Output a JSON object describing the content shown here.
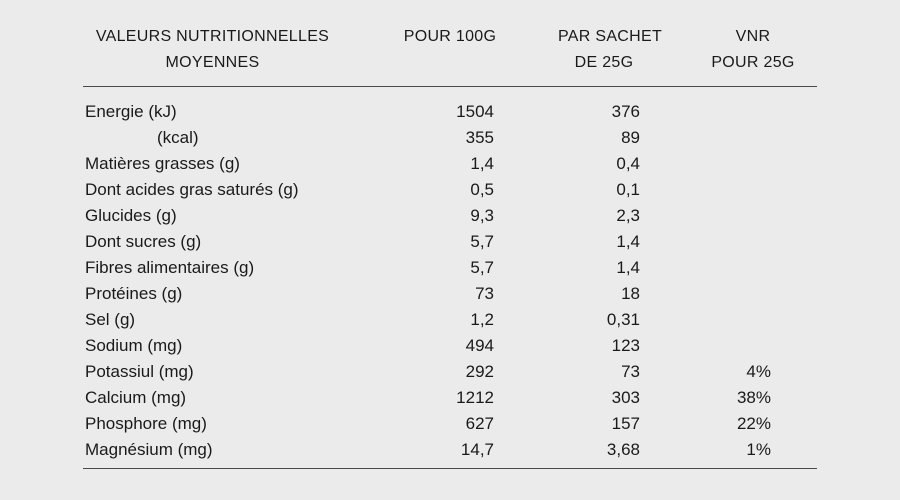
{
  "page": {
    "background_color": "#ebebeb",
    "text_color": "#1a1a1a",
    "rule_color": "#4a4a4a"
  },
  "table": {
    "headers": [
      {
        "line1": "VALEURS NUTRITIONNELLES",
        "line2": "MOYENNES"
      },
      {
        "line1": "POUR 100G",
        "line2": ""
      },
      {
        "line1": "PAR SACHET",
        "line2": "DE 25G"
      },
      {
        "line1": "VNR",
        "line2": "POUR 25G"
      }
    ],
    "rows": [
      {
        "label": "Energie (kJ)",
        "indent": false,
        "pour_100g": "1504",
        "par_sachet": "376",
        "vnr": ""
      },
      {
        "label": "(kcal)",
        "indent": true,
        "pour_100g": "355",
        "par_sachet": "89",
        "vnr": ""
      },
      {
        "label": "Matières grasses (g)",
        "indent": false,
        "pour_100g": "1,4",
        "par_sachet": "0,4",
        "vnr": ""
      },
      {
        "label": "Dont acides gras saturés (g)",
        "indent": false,
        "pour_100g": "0,5",
        "par_sachet": "0,1",
        "vnr": ""
      },
      {
        "label": "Glucides (g)",
        "indent": false,
        "pour_100g": "9,3",
        "par_sachet": "2,3",
        "vnr": ""
      },
      {
        "label": "Dont sucres (g)",
        "indent": false,
        "pour_100g": "5,7",
        "par_sachet": "1,4",
        "vnr": ""
      },
      {
        "label": "Fibres alimentaires (g)",
        "indent": false,
        "pour_100g": "5,7",
        "par_sachet": "1,4",
        "vnr": ""
      },
      {
        "label": "Protéines (g)",
        "indent": false,
        "pour_100g": "73",
        "par_sachet": "18",
        "vnr": ""
      },
      {
        "label": "Sel (g)",
        "indent": false,
        "pour_100g": "1,2",
        "par_sachet": "0,31",
        "vnr": ""
      },
      {
        "label": "Sodium (mg)",
        "indent": false,
        "pour_100g": "494",
        "par_sachet": "123",
        "vnr": ""
      },
      {
        "label": "Potassiul (mg)",
        "indent": false,
        "pour_100g": "292",
        "par_sachet": "73",
        "vnr": "4%"
      },
      {
        "label": "Calcium (mg)",
        "indent": false,
        "pour_100g": "1212",
        "par_sachet": "303",
        "vnr": "38%"
      },
      {
        "label": "Phosphore (mg)",
        "indent": false,
        "pour_100g": "627",
        "par_sachet": "157",
        "vnr": "22%"
      },
      {
        "label": "Magnésium (mg)",
        "indent": false,
        "pour_100g": "14,7",
        "par_sachet": "3,68",
        "vnr": "1%"
      }
    ]
  },
  "chart_data": {
    "type": "table",
    "title": "VALEURS NUTRITIONNELLES MOYENNES",
    "columns": [
      "VALEURS NUTRITIONNELLES MOYENNES",
      "POUR 100G",
      "PAR SACHET DE 25G",
      "VNR POUR 25G"
    ],
    "rows": [
      [
        "Energie (kJ)",
        "1504",
        "376",
        ""
      ],
      [
        "(kcal)",
        "355",
        "89",
        ""
      ],
      [
        "Matières grasses (g)",
        "1,4",
        "0,4",
        ""
      ],
      [
        "Dont acides gras saturés (g)",
        "0,5",
        "0,1",
        ""
      ],
      [
        "Glucides (g)",
        "9,3",
        "2,3",
        ""
      ],
      [
        "Dont sucres (g)",
        "5,7",
        "1,4",
        ""
      ],
      [
        "Fibres alimentaires (g)",
        "5,7",
        "1,4",
        ""
      ],
      [
        "Protéines (g)",
        "73",
        "18",
        ""
      ],
      [
        "Sel (g)",
        "1,2",
        "0,31",
        ""
      ],
      [
        "Sodium (mg)",
        "494",
        "123",
        ""
      ],
      [
        "Potassiul (mg)",
        "292",
        "73",
        "4%"
      ],
      [
        "Calcium (mg)",
        "1212",
        "303",
        "38%"
      ],
      [
        "Phosphore (mg)",
        "627",
        "157",
        "22%"
      ],
      [
        "Magnésium (mg)",
        "14,7",
        "3,68",
        "1%"
      ]
    ],
    "layout": {
      "grid": false,
      "header_rule": true,
      "bottom_rule": true,
      "value_alignment": "right"
    }
  }
}
